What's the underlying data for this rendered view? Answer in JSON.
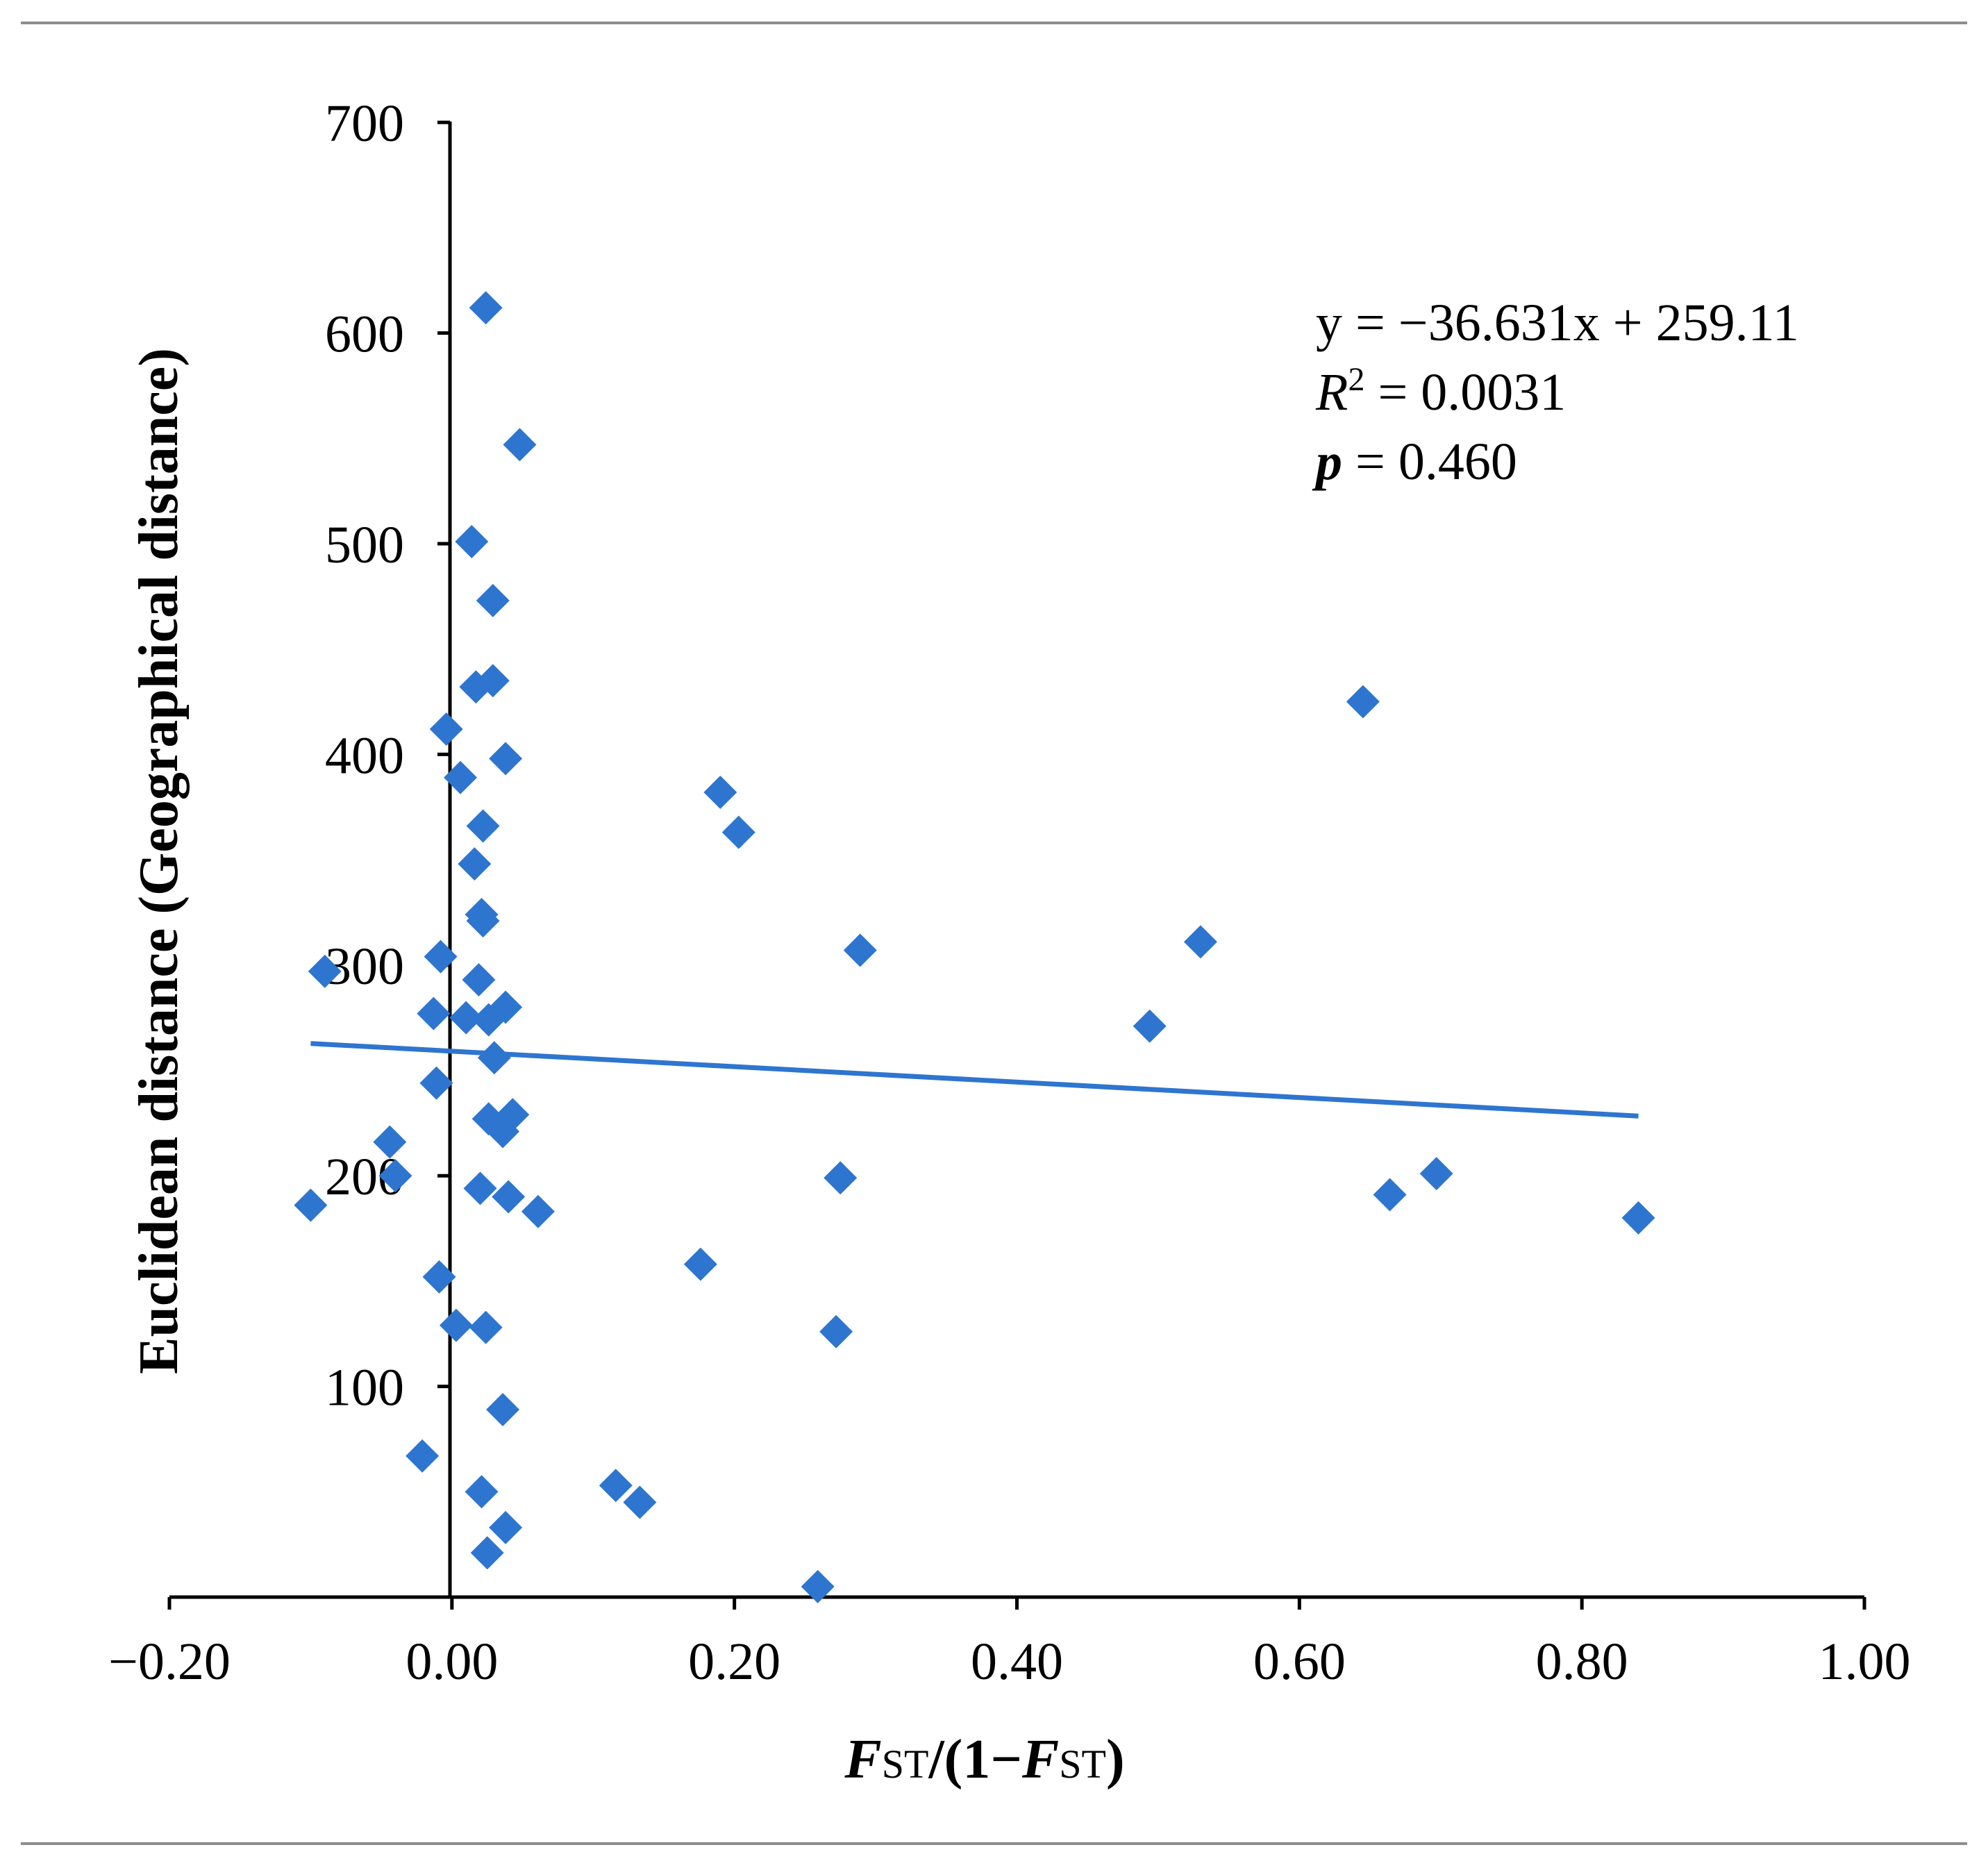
{
  "chart_data": {
    "type": "scatter",
    "title": "",
    "xlabel": "FST/(1−FST)",
    "xlabel_parts": {
      "f1": "F",
      "st1": "ST",
      "middle": "/(1−",
      "f2": "F",
      "st2": "ST",
      "end": ")"
    },
    "ylabel": "Euclidean distance (Geographical distance)",
    "xlim": [
      -0.2,
      1.0
    ],
    "ylim": [
      0,
      700
    ],
    "xticks": [
      -0.2,
      0.0,
      0.2,
      0.4,
      0.6,
      0.8,
      1.0
    ],
    "xtick_labels": [
      "−0.20",
      "0.00",
      "0.20",
      "0.40",
      "0.60",
      "0.80",
      "1.00"
    ],
    "yticks": [
      100,
      200,
      300,
      400,
      500,
      600,
      700
    ],
    "ytick_labels": [
      "100",
      "200",
      "300",
      "400",
      "500",
      "600",
      "700"
    ],
    "marker": "diamond",
    "marker_color": "#2E75CF",
    "line_color": "#2E75CF",
    "trendline": {
      "slope": -36.631,
      "intercept": 259.11,
      "x_range": [
        -0.1,
        0.84
      ]
    },
    "annotations": {
      "equation": "y = −36.631x + 259.11",
      "r2_symbol": "R",
      "r2_sup": "2",
      "r2_value": " = 0.0031",
      "p_symbol": "p",
      "p_value": " = 0.460"
    },
    "points": [
      {
        "x": 0.024,
        "y": 612
      },
      {
        "x": 0.048,
        "y": 547
      },
      {
        "x": 0.014,
        "y": 501
      },
      {
        "x": 0.029,
        "y": 473
      },
      {
        "x": 0.017,
        "y": 432
      },
      {
        "x": 0.029,
        "y": 435
      },
      {
        "x": -0.004,
        "y": 412
      },
      {
        "x": 0.038,
        "y": 398
      },
      {
        "x": 0.006,
        "y": 389
      },
      {
        "x": 0.022,
        "y": 366
      },
      {
        "x": 0.016,
        "y": 348
      },
      {
        "x": 0.021,
        "y": 324
      },
      {
        "x": 0.022,
        "y": 321
      },
      {
        "x": -0.008,
        "y": 304
      },
      {
        "x": 0.019,
        "y": 293
      },
      {
        "x": -0.09,
        "y": 297
      },
      {
        "x": -0.013,
        "y": 277
      },
      {
        "x": 0.01,
        "y": 275
      },
      {
        "x": 0.026,
        "y": 274
      },
      {
        "x": 0.038,
        "y": 280
      },
      {
        "x": 0.03,
        "y": 256
      },
      {
        "x": -0.011,
        "y": 244
      },
      {
        "x": 0.026,
        "y": 227
      },
      {
        "x": 0.036,
        "y": 221
      },
      {
        "x": 0.043,
        "y": 229
      },
      {
        "x": -0.044,
        "y": 216
      },
      {
        "x": -0.04,
        "y": 200
      },
      {
        "x": -0.1,
        "y": 186
      },
      {
        "x": 0.02,
        "y": 194
      },
      {
        "x": 0.04,
        "y": 190
      },
      {
        "x": 0.061,
        "y": 183
      },
      {
        "x": -0.009,
        "y": 152
      },
      {
        "x": 0.003,
        "y": 129
      },
      {
        "x": 0.024,
        "y": 128
      },
      {
        "x": 0.036,
        "y": 89
      },
      {
        "x": -0.021,
        "y": 67
      },
      {
        "x": 0.021,
        "y": 50
      },
      {
        "x": 0.038,
        "y": 33
      },
      {
        "x": 0.025,
        "y": 21
      },
      {
        "x": 0.116,
        "y": 53
      },
      {
        "x": 0.133,
        "y": 45
      },
      {
        "x": 0.176,
        "y": 158
      },
      {
        "x": 0.19,
        "y": 382
      },
      {
        "x": 0.203,
        "y": 363
      },
      {
        "x": 0.259,
        "y": 5
      },
      {
        "x": 0.272,
        "y": 126
      },
      {
        "x": 0.275,
        "y": 199
      },
      {
        "x": 0.289,
        "y": 307
      },
      {
        "x": 0.494,
        "y": 271
      },
      {
        "x": 0.53,
        "y": 311
      },
      {
        "x": 0.645,
        "y": 425
      },
      {
        "x": 0.664,
        "y": 191
      },
      {
        "x": 0.697,
        "y": 201
      },
      {
        "x": 0.84,
        "y": 180
      }
    ]
  }
}
